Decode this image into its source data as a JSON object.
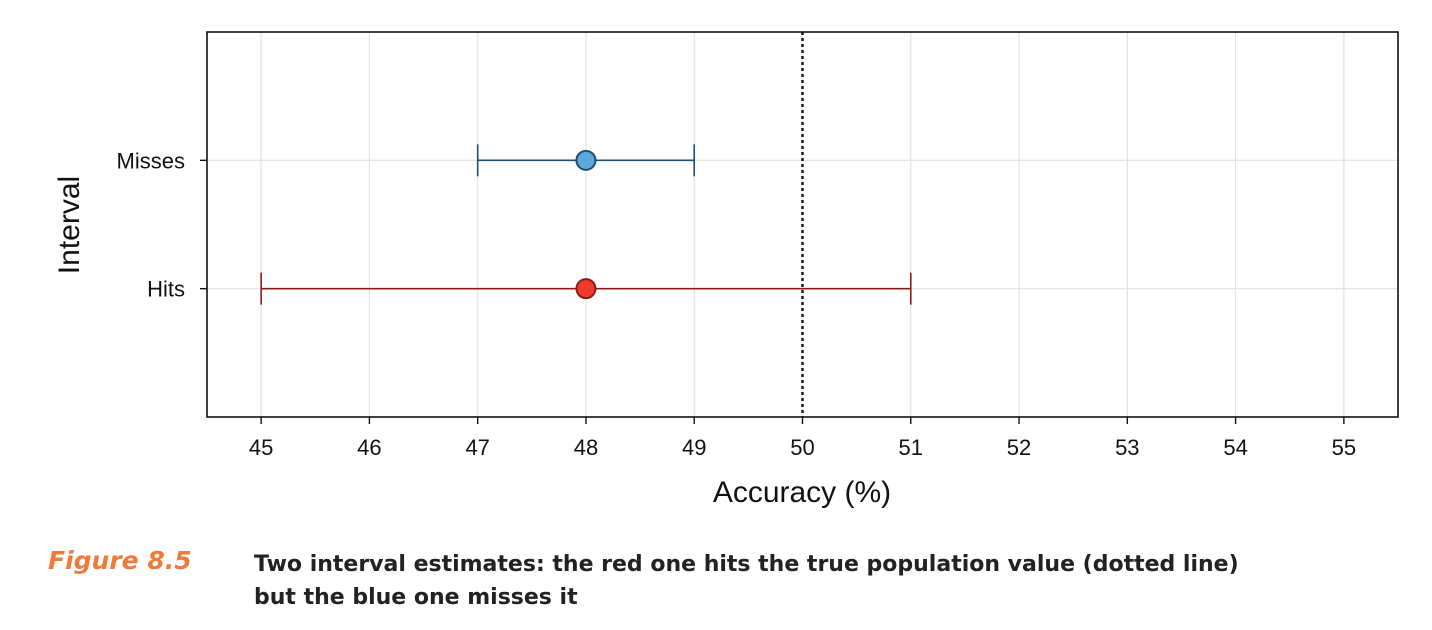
{
  "chart_data": {
    "type": "scatter",
    "subtype": "interval-estimate",
    "xlabel": "Accuracy (%)",
    "ylabel": "Interval",
    "xlim": [
      44.5,
      55.5
    ],
    "xticks": [
      45,
      46,
      47,
      48,
      49,
      50,
      51,
      52,
      53,
      54,
      55
    ],
    "categories": [
      "Misses",
      "Hits"
    ],
    "grid": true,
    "reference_line": {
      "x": 50,
      "style": "dotted",
      "color": "#222222"
    },
    "series": [
      {
        "category": "Misses",
        "estimate": 48,
        "lower": 47,
        "upper": 49,
        "point_color": "#5aa9dc",
        "line_color": "#1f4e6e"
      },
      {
        "category": "Hits",
        "estimate": 48,
        "lower": 45,
        "upper": 51,
        "point_color": "#ee3b2e",
        "line_color": "#8b1a1a"
      }
    ]
  },
  "caption": {
    "figure_number": "Figure 8.5",
    "text": "Two interval estimates: the red one hits the true population value (dotted line) but the blue one misses it"
  }
}
